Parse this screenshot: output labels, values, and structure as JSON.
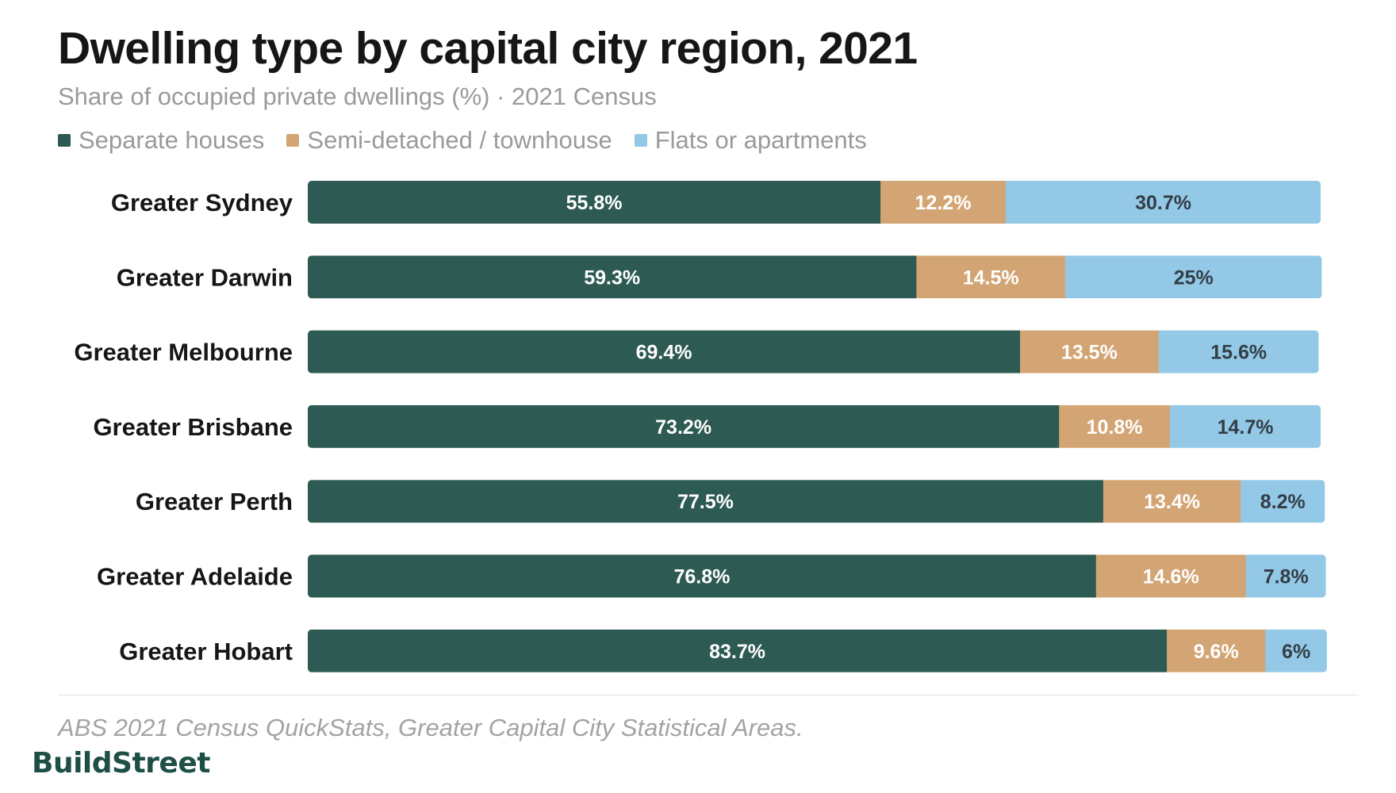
{
  "header": {
    "title": "Dwelling type by capital city region, 2021",
    "subtitle": "Share of occupied private dwellings (%) · 2021 Census"
  },
  "colors": {
    "separate": "#2d5a52",
    "semi": "#d4a574",
    "flats": "#93c9e6",
    "label_on_dark": "#ffffff",
    "label_on_light": "#333d47"
  },
  "chart_data": {
    "type": "bar",
    "orientation": "horizontal",
    "stacked": true,
    "title": "Dwelling type by capital city region, 2021",
    "subtitle": "Share of occupied private dwellings (%) · 2021 Census",
    "categories": [
      "Greater Sydney",
      "Greater Darwin",
      "Greater Melbourne",
      "Greater Brisbane",
      "Greater Perth",
      "Greater Adelaide",
      "Greater Hobart"
    ],
    "series": [
      {
        "name": "Separate houses",
        "values": [
          55.8,
          59.3,
          69.4,
          73.2,
          77.5,
          76.8,
          83.7
        ]
      },
      {
        "name": "Semi-detached / townhouse",
        "values": [
          12.2,
          14.5,
          13.5,
          10.8,
          13.4,
          14.6,
          9.6
        ]
      },
      {
        "name": "Flats or apartments",
        "values": [
          30.7,
          25,
          15.6,
          14.7,
          8.2,
          7.8,
          6
        ]
      }
    ],
    "data_labels": [
      [
        "55.8%",
        "12.2%",
        "30.7%"
      ],
      [
        "59.3%",
        "14.5%",
        "25%"
      ],
      [
        "69.4%",
        "13.5%",
        "15.6%"
      ],
      [
        "73.2%",
        "10.8%",
        "14.7%"
      ],
      [
        "77.5%",
        "13.4%",
        "8.2%"
      ],
      [
        "76.8%",
        "14.6%",
        "7.8%"
      ],
      [
        "83.7%",
        "9.6%",
        "6%"
      ]
    ],
    "xlim": [
      0,
      100
    ],
    "grid": false,
    "legend_position": "top-left"
  },
  "footer": {
    "source": "ABS 2021 Census QuickStats, Greater Capital City Statistical Areas.",
    "brand": "BuildStreet"
  }
}
